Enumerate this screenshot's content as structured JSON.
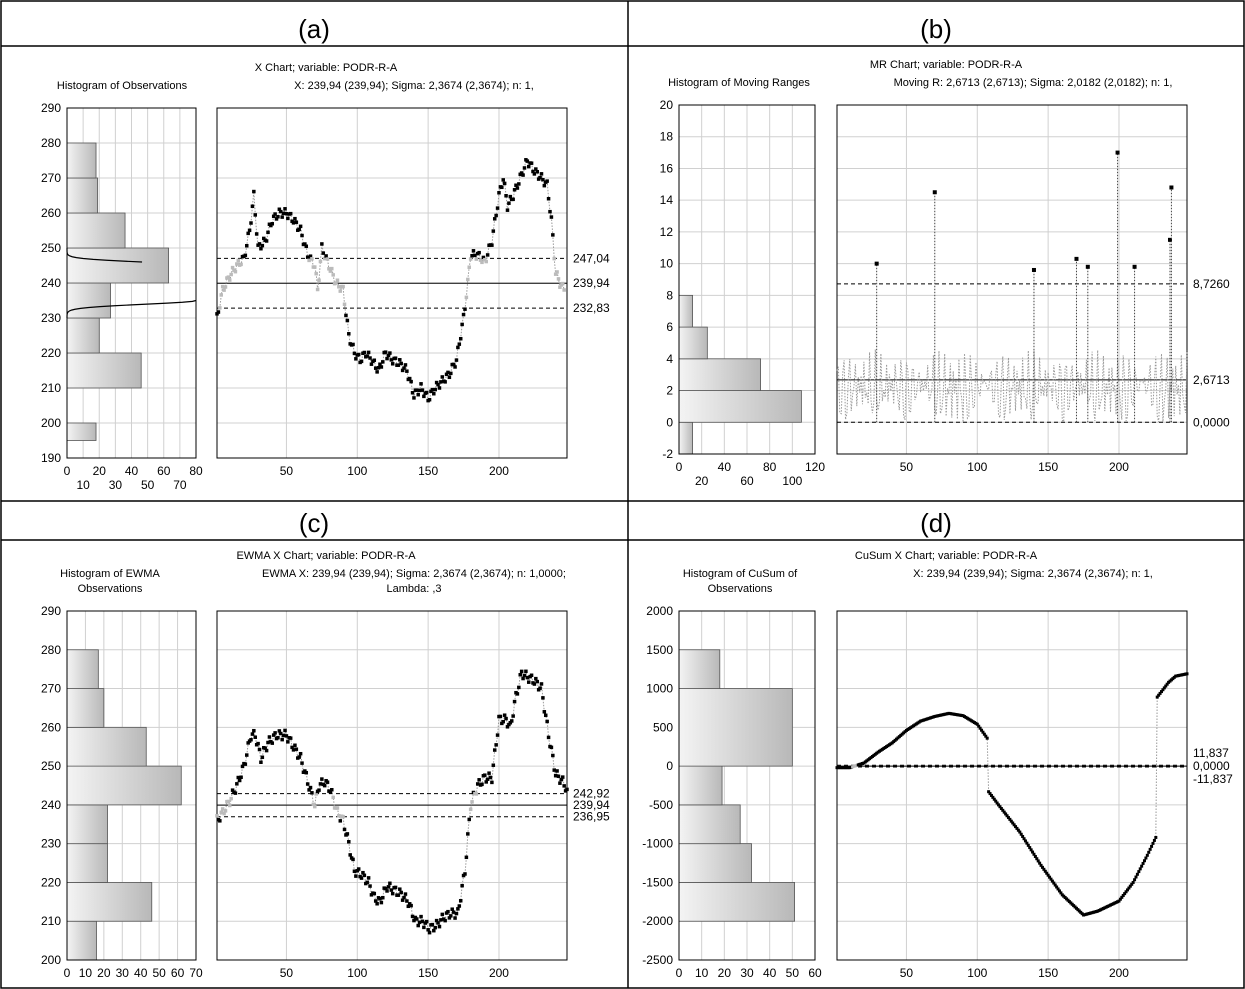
{
  "chart_data": [
    {
      "panel_label": "(a)",
      "type": "line",
      "title": "X Chart; variable:  PODR-R-A",
      "subtitle": "X: 239,94 (239,94); Sigma: 2,3674 (2,3674); n: 1,",
      "hist_title": "Histogram of Observations",
      "x_ticks": [
        "50",
        "100",
        "150",
        "200"
      ],
      "y_ticks": [
        "190",
        "200",
        "210",
        "220",
        "230",
        "240",
        "250",
        "260",
        "270",
        "280",
        "290"
      ],
      "ylim": [
        190,
        290
      ],
      "xlim": [
        1,
        248
      ],
      "hist_xlim": [
        0,
        80
      ],
      "hist_ticks_top": [
        "0",
        "20",
        "40",
        "60",
        "80"
      ],
      "hist_ticks_bottom": [
        "10",
        "30",
        "50",
        "70"
      ],
      "hist_bins": [
        {
          "from": 195,
          "to": 200,
          "count": 18
        },
        {
          "from": 200,
          "to": 220,
          "count": 0
        },
        {
          "from": 210,
          "to": 220,
          "count": 46
        },
        {
          "from": 220,
          "to": 230,
          "count": 20
        },
        {
          "from": 230,
          "to": 240,
          "count": 27
        },
        {
          "from": 240,
          "to": 250,
          "count": 63
        },
        {
          "from": 250,
          "to": 260,
          "count": 36
        },
        {
          "from": 260,
          "to": 270,
          "count": 19
        },
        {
          "from": 270,
          "to": 280,
          "count": 18
        }
      ],
      "limits": [
        {
          "label": "247,04",
          "value": 247.04,
          "style": "dashed"
        },
        {
          "label": "239,94",
          "value": 239.94,
          "style": "solid"
        },
        {
          "label": "232,83",
          "value": 232.83,
          "style": "dashed"
        }
      ],
      "series": [
        {
          "values": [
            [
              1,
              230
            ],
            [
              5,
              238
            ],
            [
              10,
              242
            ],
            [
              15,
              245
            ],
            [
              20,
              247
            ],
            [
              24,
              255
            ],
            [
              27,
              265
            ],
            [
              30,
              250
            ],
            [
              35,
              252
            ],
            [
              40,
              258
            ],
            [
              45,
              260
            ],
            [
              50,
              260
            ],
            [
              55,
              258
            ],
            [
              60,
              255
            ],
            [
              65,
              248
            ],
            [
              70,
              245
            ],
            [
              72,
              238
            ],
            [
              75,
              250
            ],
            [
              80,
              245
            ],
            [
              85,
              240
            ],
            [
              90,
              238
            ],
            [
              94,
              225
            ],
            [
              98,
              220
            ],
            [
              102,
              218
            ],
            [
              106,
              220
            ],
            [
              110,
              218
            ],
            [
              115,
              215
            ],
            [
              120,
              220
            ],
            [
              125,
              218
            ],
            [
              130,
              217
            ],
            [
              135,
              215
            ],
            [
              140,
              208
            ],
            [
              145,
              210
            ],
            [
              150,
              207
            ],
            [
              155,
              210
            ],
            [
              160,
              212
            ],
            [
              165,
              214
            ],
            [
              170,
              218
            ],
            [
              175,
              230
            ],
            [
              178,
              240
            ],
            [
              180,
              248
            ],
            [
              185,
              248
            ],
            [
              190,
              246
            ],
            [
              195,
              252
            ],
            [
              200,
              265
            ],
            [
              203,
              270
            ],
            [
              206,
              262
            ],
            [
              210,
              265
            ],
            [
              215,
              270
            ],
            [
              220,
              275
            ],
            [
              225,
              272
            ],
            [
              230,
              270
            ],
            [
              234,
              268
            ],
            [
              237,
              258
            ],
            [
              240,
              243
            ],
            [
              243,
              240
            ],
            [
              246,
              238
            ]
          ]
        }
      ],
      "grid": true
    },
    {
      "panel_label": "(b)",
      "type": "line",
      "title": "MR Chart; variable:  PODR-R-A",
      "subtitle": "Moving R: 2,6713 (2,6713); Sigma: 2,0182 (2,0182); n: 1,",
      "hist_title": "Histogram of Moving Ranges",
      "x_ticks": [
        "50",
        "100",
        "150",
        "200"
      ],
      "y_ticks": [
        "-2",
        "0",
        "2",
        "4",
        "6",
        "8",
        "10",
        "12",
        "14",
        "16",
        "18",
        "20"
      ],
      "ylim": [
        -2,
        20
      ],
      "xlim": [
        1,
        248
      ],
      "hist_xlim": [
        0,
        120
      ],
      "hist_ticks_top": [
        "0",
        "40",
        "80",
        "120"
      ],
      "hist_ticks_bottom": [
        "20",
        "60",
        "100"
      ],
      "hist_bins": [
        {
          "from": -2,
          "to": 0,
          "count": 12
        },
        {
          "from": 0,
          "to": 2,
          "count": 0
        },
        {
          "from": 0,
          "to": 2,
          "count": 108
        },
        {
          "from": 2,
          "to": 4,
          "count": 72
        },
        {
          "from": 4,
          "to": 6,
          "count": 25
        },
        {
          "from": 6,
          "to": 8,
          "count": 12
        },
        {
          "from": 8,
          "to": 10,
          "count": 0
        }
      ],
      "limits": [
        {
          "label": "8,7260",
          "value": 8.726,
          "style": "dashed"
        },
        {
          "label": "2,6713",
          "value": 2.6713,
          "style": "solid"
        },
        {
          "label": "0,0000",
          "value": 0,
          "style": "dashed"
        }
      ],
      "spikes": [
        [
          29,
          10
        ],
        [
          70,
          14.5
        ],
        [
          140,
          9.6
        ],
        [
          170,
          10.3
        ],
        [
          178,
          9.8
        ],
        [
          199,
          17
        ],
        [
          211,
          9.8
        ],
        [
          236,
          11.5
        ],
        [
          237,
          14.8
        ]
      ],
      "grid": true
    },
    {
      "panel_label": "(c)",
      "type": "line",
      "title": "EWMA X Chart; variable:  PODR-R-A",
      "subtitle": "EWMA X: 239,94 (239,94); Sigma: 2,3674 (2,3674); n: 1,0000;",
      "subtitle2": "Lambda: ,3",
      "hist_title": "Histogram of EWMA",
      "hist_title2": "Observations",
      "x_ticks": [
        "50",
        "100",
        "150",
        "200"
      ],
      "y_ticks": [
        "200",
        "210",
        "220",
        "230",
        "240",
        "250",
        "260",
        "270",
        "280",
        "290"
      ],
      "ylim": [
        200,
        290
      ],
      "xlim": [
        1,
        248
      ],
      "hist_xlim": [
        0,
        70
      ],
      "hist_ticks": [
        "0",
        "10",
        "20",
        "30",
        "40",
        "50",
        "60",
        "70"
      ],
      "hist_bins": [
        {
          "from": 200,
          "to": 210,
          "count": 16
        },
        {
          "from": 210,
          "to": 220,
          "count": 46
        },
        {
          "from": 220,
          "to": 230,
          "count": 22
        },
        {
          "from": 230,
          "to": 240,
          "count": 22
        },
        {
          "from": 240,
          "to": 250,
          "count": 62
        },
        {
          "from": 250,
          "to": 260,
          "count": 43
        },
        {
          "from": 260,
          "to": 270,
          "count": 20
        },
        {
          "from": 270,
          "to": 280,
          "count": 17
        }
      ],
      "limits": [
        {
          "label": "242,92",
          "value": 242.92,
          "style": "dashed"
        },
        {
          "label": "239,94",
          "value": 239.94,
          "style": "solid"
        },
        {
          "label": "236,95",
          "value": 236.95,
          "style": "dashed"
        }
      ],
      "series": [
        {
          "values": [
            [
              1,
              236
            ],
            [
              5,
              238
            ],
            [
              10,
              241
            ],
            [
              15,
              245
            ],
            [
              20,
              250
            ],
            [
              25,
              258
            ],
            [
              28,
              258
            ],
            [
              32,
              252
            ],
            [
              37,
              256
            ],
            [
              43,
              258
            ],
            [
              50,
              258
            ],
            [
              55,
              255
            ],
            [
              60,
              252
            ],
            [
              65,
              246
            ],
            [
              70,
              240
            ],
            [
              73,
              245
            ],
            [
              77,
              246
            ],
            [
              81,
              244
            ],
            [
              86,
              238
            ],
            [
              90,
              236
            ],
            [
              94,
              230
            ],
            [
              98,
              223
            ],
            [
              103,
              222
            ],
            [
              108,
              220
            ],
            [
              112,
              216
            ],
            [
              116,
              215
            ],
            [
              121,
              219
            ],
            [
              126,
              218
            ],
            [
              131,
              217
            ],
            [
              136,
              215
            ],
            [
              141,
              210
            ],
            [
              146,
              210
            ],
            [
              151,
              208
            ],
            [
              156,
              209
            ],
            [
              161,
              211
            ],
            [
              166,
              212
            ],
            [
              171,
              212
            ],
            [
              176,
              223
            ],
            [
              180,
              240
            ],
            [
              185,
              245
            ],
            [
              190,
              247
            ],
            [
              195,
              247
            ],
            [
              200,
              262
            ],
            [
              205,
              262
            ],
            [
              208,
              260
            ],
            [
              212,
              268
            ],
            [
              216,
              274
            ],
            [
              220,
              273
            ],
            [
              225,
              272
            ],
            [
              230,
              270
            ],
            [
              235,
              258
            ],
            [
              240,
              248
            ],
            [
              245,
              246
            ],
            [
              248,
              244
            ]
          ]
        }
      ],
      "grid": true
    },
    {
      "panel_label": "(d)",
      "type": "line",
      "title": "CuSum X Chart; variable:  PODR-R-A",
      "subtitle": "X: 239,94 (239,94); Sigma: 2,3674 (2,3674); n: 1,",
      "hist_title": "Histogram of CuSum of",
      "hist_title2": "Observations",
      "x_ticks": [
        "50",
        "100",
        "150",
        "200"
      ],
      "y_ticks": [
        "-2500",
        "-2000",
        "-1500",
        "-1000",
        "-500",
        "0",
        "500",
        "1000",
        "1500",
        "2000"
      ],
      "ylim": [
        -2500,
        2000
      ],
      "xlim": [
        1,
        248
      ],
      "hist_xlim": [
        0,
        60
      ],
      "hist_ticks": [
        "0",
        "10",
        "20",
        "30",
        "40",
        "50",
        "60"
      ],
      "hist_bins": [
        {
          "from": -2000,
          "to": -1500,
          "count": 51
        },
        {
          "from": -1500,
          "to": -1000,
          "count": 32
        },
        {
          "from": -1000,
          "to": -500,
          "count": 27
        },
        {
          "from": -500,
          "to": 0,
          "count": 19
        },
        {
          "from": 0,
          "to": 1000,
          "count": 50
        },
        {
          "from": 1000,
          "to": 1500,
          "count": 18
        }
      ],
      "limits": [
        {
          "label": "11,837",
          "value": 11.837,
          "style": "dashed"
        },
        {
          "label": "0,0000",
          "value": 0,
          "style": "solid"
        },
        {
          "label": "-11,837",
          "value": -11.837,
          "style": "dashed"
        }
      ],
      "series": [
        {
          "values": [
            [
              1,
              -20
            ],
            [
              10,
              -20
            ],
            [
              20,
              40
            ],
            [
              30,
              180
            ],
            [
              40,
              300
            ],
            [
              50,
              460
            ],
            [
              60,
              580
            ],
            [
              70,
              640
            ],
            [
              80,
              680
            ],
            [
              90,
              650
            ],
            [
              100,
              540
            ],
            [
              107,
              360
            ],
            [
              108,
              -330
            ],
            [
              115,
              -500
            ],
            [
              130,
              -850
            ],
            [
              145,
              -1280
            ],
            [
              160,
              -1660
            ],
            [
              175,
              -1920
            ],
            [
              185,
              -1870
            ],
            [
              200,
              -1740
            ],
            [
              210,
              -1500
            ],
            [
              220,
              -1150
            ],
            [
              226,
              -920
            ],
            [
              227,
              890
            ],
            [
              235,
              1080
            ],
            [
              240,
              1160
            ],
            [
              248,
              1190
            ]
          ]
        }
      ],
      "grid": true
    }
  ]
}
